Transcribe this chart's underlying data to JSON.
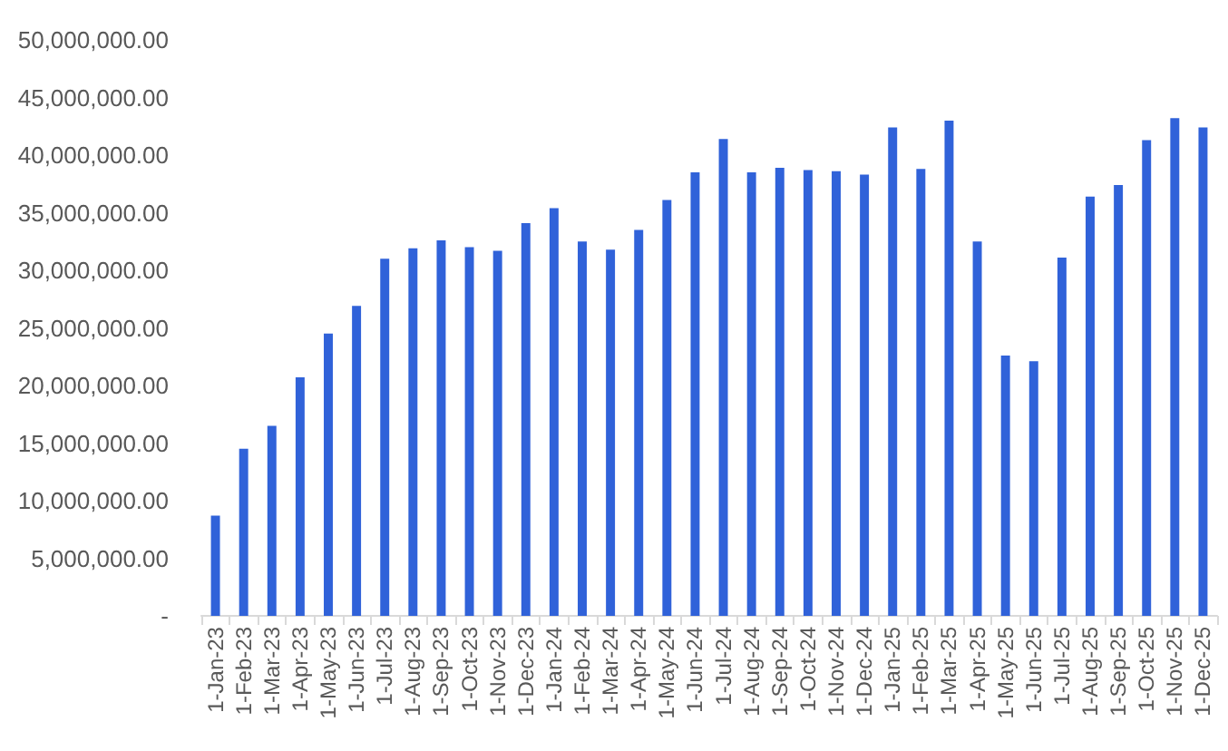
{
  "chart_data": {
    "type": "bar",
    "categories": [
      "1-Jan-23",
      "1-Feb-23",
      "1-Mar-23",
      "1-Apr-23",
      "1-May-23",
      "1-Jun-23",
      "1-Jul-23",
      "1-Aug-23",
      "1-Sep-23",
      "1-Oct-23",
      "1-Nov-23",
      "1-Dec-23",
      "1-Jan-24",
      "1-Feb-24",
      "1-Mar-24",
      "1-Apr-24",
      "1-May-24",
      "1-Jun-24",
      "1-Jul-24",
      "1-Aug-24",
      "1-Sep-24",
      "1-Oct-24",
      "1-Nov-24",
      "1-Dec-24",
      "1-Jan-25",
      "1-Feb-25",
      "1-Mar-25",
      "1-Apr-25",
      "1-May-25",
      "1-Jun-25",
      "1-Jul-25",
      "1-Aug-25",
      "1-Sep-25",
      "1-Oct-25",
      "1-Nov-25",
      "1-Dec-25"
    ],
    "values": [
      8700000,
      14500000,
      16500000,
      20700000,
      24500000,
      26900000,
      31000000,
      31900000,
      32600000,
      32000000,
      31700000,
      34100000,
      35400000,
      32500000,
      31800000,
      33500000,
      36100000,
      38500000,
      41400000,
      38500000,
      38900000,
      38700000,
      38600000,
      38300000,
      42400000,
      38800000,
      43000000,
      32500000,
      22600000,
      22100000,
      31100000,
      36400000,
      37400000,
      41300000,
      43200000,
      42400000
    ],
    "color": "#3062d9",
    "ylim": [
      0,
      50000000
    ],
    "yticks": [
      {
        "value": 0,
        "label": "-"
      },
      {
        "value": 5000000,
        "label": "5,000,000.00"
      },
      {
        "value": 10000000,
        "label": "10,000,000.00"
      },
      {
        "value": 15000000,
        "label": "15,000,000.00"
      },
      {
        "value": 20000000,
        "label": "20,000,000.00"
      },
      {
        "value": 25000000,
        "label": "25,000,000.00"
      },
      {
        "value": 30000000,
        "label": "30,000,000.00"
      },
      {
        "value": 35000000,
        "label": "35,000,000.00"
      },
      {
        "value": 40000000,
        "label": "40,000,000.00"
      },
      {
        "value": 45000000,
        "label": "45,000,000.00"
      },
      {
        "value": 50000000,
        "label": "50,000,000.00"
      }
    ],
    "grid": false
  }
}
